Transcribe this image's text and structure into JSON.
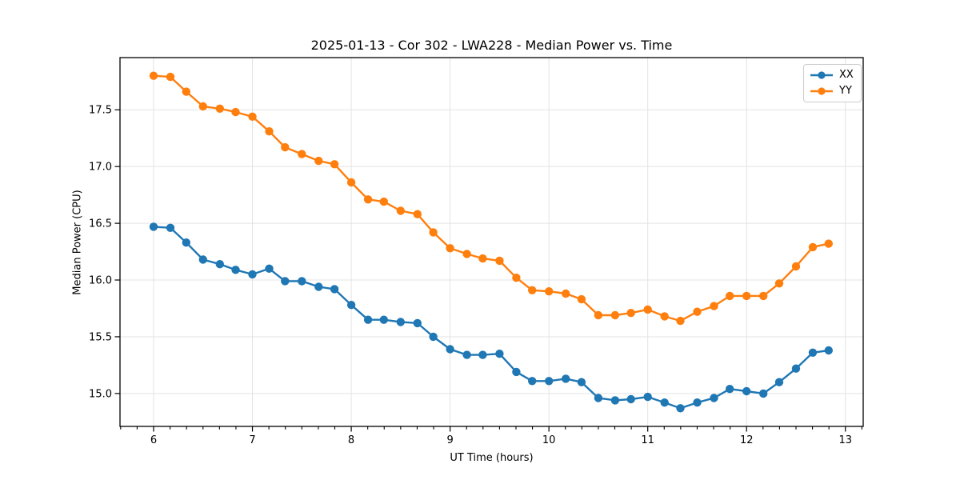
{
  "chart_data": {
    "type": "line",
    "title": "2025-01-13 - Cor 302 - LWA228 - Median Power vs. Time",
    "xlabel": "UT Time (hours)",
    "ylabel": "Median Power (CPU)",
    "xlim": [
      5.66,
      13.18
    ],
    "ylim": [
      14.71,
      17.96
    ],
    "xticks": [
      6,
      7,
      8,
      9,
      10,
      11,
      12,
      13
    ],
    "xtick_labels": [
      "6",
      "7",
      "8",
      "9",
      "10",
      "11",
      "12",
      "13"
    ],
    "yticks": [
      15.0,
      15.5,
      16.0,
      16.5,
      17.0,
      17.5
    ],
    "ytick_labels": [
      "15.0",
      "15.5",
      "16.0",
      "16.5",
      "17.0",
      "17.5"
    ],
    "x_minor_tick_interval_hours": 0.16667,
    "grid": true,
    "grid_color": "#e3e3e3",
    "legend_position": "upper right",
    "x": [
      6.0,
      6.17,
      6.33,
      6.5,
      6.67,
      6.83,
      7.0,
      7.17,
      7.33,
      7.5,
      7.67,
      7.83,
      8.0,
      8.17,
      8.33,
      8.5,
      8.67,
      8.83,
      9.0,
      9.17,
      9.33,
      9.5,
      9.67,
      9.83,
      10.0,
      10.17,
      10.33,
      10.5,
      10.67,
      10.83,
      11.0,
      11.17,
      11.33,
      11.5,
      11.67,
      11.83,
      12.0,
      12.17,
      12.33,
      12.5,
      12.67,
      12.83
    ],
    "series": [
      {
        "name": "XX",
        "color": "#1f77b4",
        "values": [
          16.47,
          16.46,
          16.33,
          16.18,
          16.14,
          16.09,
          16.05,
          16.1,
          15.99,
          15.99,
          15.94,
          15.92,
          15.78,
          15.65,
          15.65,
          15.63,
          15.62,
          15.5,
          15.39,
          15.34,
          15.34,
          15.35,
          15.19,
          15.11,
          15.11,
          15.13,
          15.1,
          14.96,
          14.94,
          14.95,
          14.97,
          14.92,
          14.87,
          14.92,
          14.96,
          15.04,
          15.02,
          15.0,
          15.1,
          15.22,
          15.36,
          15.38
        ]
      },
      {
        "name": "YY",
        "color": "#ff7f0e",
        "values": [
          17.8,
          17.79,
          17.66,
          17.53,
          17.51,
          17.48,
          17.44,
          17.31,
          17.17,
          17.11,
          17.05,
          17.02,
          16.86,
          16.71,
          16.69,
          16.61,
          16.58,
          16.42,
          16.28,
          16.23,
          16.19,
          16.17,
          16.02,
          15.91,
          15.9,
          15.88,
          15.83,
          15.69,
          15.69,
          15.71,
          15.74,
          15.68,
          15.64,
          15.72,
          15.77,
          15.86,
          15.86,
          15.86,
          15.97,
          16.12,
          16.29,
          16.32
        ]
      }
    ]
  }
}
